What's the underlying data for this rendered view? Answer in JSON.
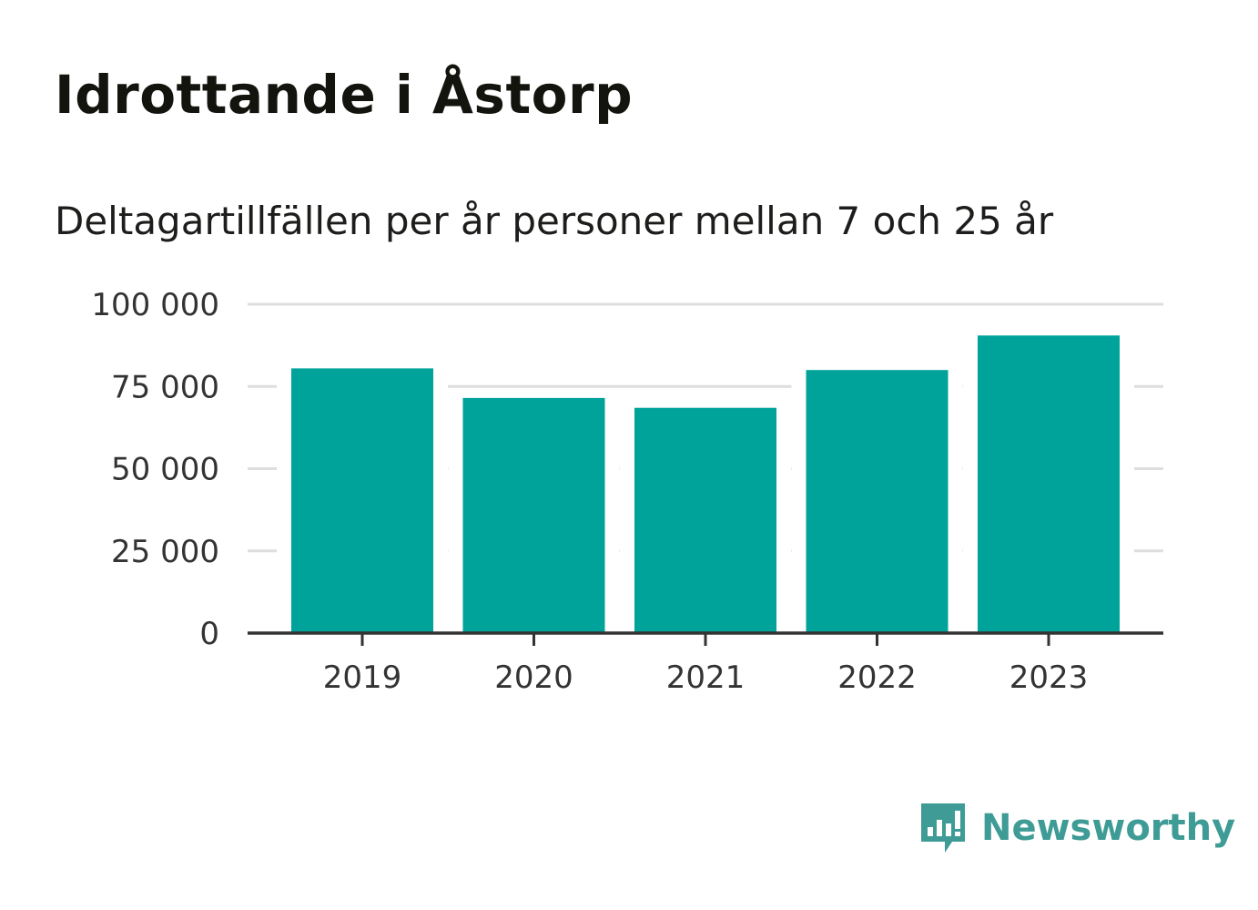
{
  "title": "Idrottande i Åstorp",
  "subtitle": "Deltagartillfällen per år personer mellan 7 och 25 år",
  "brand": {
    "name": "Newsworthy",
    "icon": "newsworthy-logo-icon",
    "color": "#3e9b95"
  },
  "colors": {
    "bar": "#00a39a",
    "grid": "#dedede",
    "axis": "#333333"
  },
  "chart_data": {
    "type": "bar",
    "categories": [
      "2019",
      "2020",
      "2021",
      "2022",
      "2023"
    ],
    "values": [
      80500,
      71500,
      68500,
      80000,
      90500
    ],
    "ylim": [
      0,
      100000
    ],
    "yticks": [
      0,
      25000,
      50000,
      75000,
      100000
    ],
    "ytick_labels": [
      "0",
      "25 000",
      "50 000",
      "75 000",
      "100 000"
    ],
    "grid": true,
    "xlabel": "",
    "ylabel": ""
  }
}
